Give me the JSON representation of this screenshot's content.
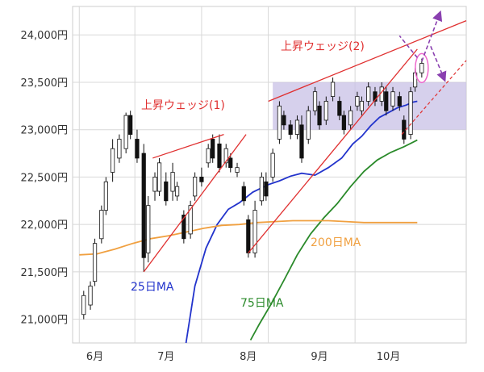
{
  "chart_data": {
    "type": "candlestick",
    "y_ticks": [
      "21,000円",
      "21,500円",
      "22,000円",
      "22,500円",
      "23,000円",
      "23,500円",
      "24,000円"
    ],
    "y_tick_values": [
      21000,
      21500,
      22000,
      22500,
      23000,
      23500,
      24000
    ],
    "x_ticks": [
      "6月",
      "7月",
      "8月",
      "9月",
      "10月"
    ],
    "ylim": [
      20750,
      24300
    ],
    "grid": "vertical-and-horizontal",
    "colors": {
      "candle": "#111111",
      "ma25": "#2233cc",
      "ma75": "#2a8a2a",
      "ma200": "#f0a040",
      "wedge": "#e03030",
      "box_fill": "#c8c0e6",
      "projection": "#8a40b0",
      "highlight": "#ee66cc"
    },
    "series": [
      {
        "name": "25日MA",
        "points": [
          [
            48,
            20750
          ],
          [
            52,
            21350
          ],
          [
            57,
            21750
          ],
          [
            62,
            22000
          ],
          [
            67,
            22160
          ],
          [
            72,
            22230
          ],
          [
            78,
            22340
          ],
          [
            85,
            22420
          ],
          [
            90,
            22460
          ],
          [
            95,
            22510
          ],
          [
            100,
            22540
          ],
          [
            106,
            22520
          ],
          [
            112,
            22600
          ],
          [
            118,
            22700
          ],
          [
            123,
            22850
          ],
          [
            127,
            22930
          ],
          [
            131,
            23040
          ],
          [
            135,
            23130
          ],
          [
            139,
            23180
          ],
          [
            143,
            23230
          ],
          [
            147,
            23260
          ],
          [
            150,
            23290
          ],
          [
            152,
            23300
          ]
        ]
      },
      {
        "name": "75日MA",
        "points": [
          [
            77,
            20780
          ],
          [
            81,
            20950
          ],
          [
            86,
            21150
          ],
          [
            92,
            21410
          ],
          [
            98,
            21680
          ],
          [
            104,
            21900
          ],
          [
            110,
            22070
          ],
          [
            116,
            22220
          ],
          [
            122,
            22400
          ],
          [
            128,
            22560
          ],
          [
            134,
            22680
          ],
          [
            140,
            22760
          ],
          [
            146,
            22820
          ],
          [
            152,
            22890
          ]
        ]
      },
      {
        "name": "200日MA",
        "points": [
          [
            0,
            21680
          ],
          [
            8,
            21690
          ],
          [
            16,
            21740
          ],
          [
            24,
            21800
          ],
          [
            32,
            21850
          ],
          [
            40,
            21880
          ],
          [
            48,
            21920
          ],
          [
            56,
            21960
          ],
          [
            64,
            21990
          ],
          [
            72,
            22000
          ],
          [
            80,
            22020
          ],
          [
            88,
            22030
          ],
          [
            96,
            22040
          ],
          [
            104,
            22040
          ],
          [
            112,
            22040
          ],
          [
            120,
            22030
          ],
          [
            128,
            22020
          ],
          [
            136,
            22020
          ],
          [
            144,
            22020
          ],
          [
            152,
            22020
          ]
        ]
      }
    ],
    "candles": [
      [
        2,
        21050,
        21250,
        21000,
        21300
      ],
      [
        5,
        21150,
        21350,
        21100,
        21400
      ],
      [
        7,
        21400,
        21800,
        21350,
        21850
      ],
      [
        10,
        21850,
        22150,
        21800,
        22200
      ],
      [
        12,
        22150,
        22450,
        22100,
        22500
      ],
      [
        15,
        22550,
        22800,
        22450,
        22900
      ],
      [
        18,
        22700,
        22900,
        22650,
        22950
      ],
      [
        21,
        22800,
        23150,
        22750,
        23180
      ],
      [
        23,
        23150,
        22950,
        22900,
        23200
      ],
      [
        26,
        22900,
        22700,
        22650,
        23000
      ],
      [
        29,
        22750,
        21650,
        21500,
        22850
      ],
      [
        31,
        21700,
        22200,
        21600,
        22300
      ],
      [
        34,
        22350,
        22500,
        22250,
        22550
      ],
      [
        36,
        22350,
        22650,
        22300,
        22700
      ],
      [
        39,
        22450,
        22250,
        22200,
        22550
      ],
      [
        42,
        22350,
        22550,
        22250,
        22650
      ],
      [
        44,
        22300,
        22400,
        22250,
        22450
      ],
      [
        47,
        22100,
        21850,
        21800,
        22150
      ],
      [
        50,
        21900,
        22200,
        21850,
        22250
      ],
      [
        52,
        22300,
        22500,
        22250,
        22550
      ],
      [
        55,
        22500,
        22450,
        22400,
        22600
      ],
      [
        58,
        22650,
        22800,
        22600,
        22850
      ],
      [
        60,
        22900,
        22700,
        22650,
        22950
      ],
      [
        63,
        22850,
        22600,
        22550,
        22950
      ],
      [
        66,
        22650,
        22800,
        22600,
        22850
      ],
      [
        68,
        22700,
        22600,
        22550,
        22750
      ],
      [
        71,
        22550,
        22600,
        22500,
        22650
      ],
      [
        74,
        22400,
        22250,
        22200,
        22450
      ],
      [
        76,
        22050,
        21700,
        21650,
        22100
      ],
      [
        79,
        21700,
        22150,
        21650,
        22250
      ],
      [
        82,
        22250,
        22500,
        22200,
        22550
      ],
      [
        84,
        22450,
        22300,
        22250,
        22550
      ],
      [
        87,
        22500,
        22750,
        22450,
        22800
      ],
      [
        90,
        22900,
        23250,
        22850,
        23300
      ],
      [
        92,
        23150,
        23050,
        23000,
        23200
      ],
      [
        95,
        23050,
        22950,
        22900,
        23100
      ],
      [
        98,
        22950,
        23100,
        22900,
        23150
      ],
      [
        100,
        23050,
        22700,
        22650,
        23150
      ],
      [
        103,
        22900,
        23200,
        22850,
        23250
      ],
      [
        106,
        23200,
        23400,
        23150,
        23450
      ],
      [
        108,
        23250,
        23050,
        23000,
        23300
      ],
      [
        111,
        23100,
        23300,
        23050,
        23350
      ],
      [
        114,
        23350,
        23500,
        23300,
        23550
      ],
      [
        117,
        23300,
        23150,
        23100,
        23350
      ],
      [
        119,
        23150,
        23000,
        22950,
        23200
      ],
      [
        122,
        23050,
        23200,
        23000,
        23250
      ],
      [
        125,
        23250,
        23350,
        23200,
        23400
      ],
      [
        127,
        23200,
        23300,
        23150,
        23350
      ],
      [
        130,
        23300,
        23450,
        23250,
        23500
      ],
      [
        133,
        23400,
        23300,
        23250,
        23450
      ],
      [
        136,
        23300,
        23450,
        23250,
        23500
      ],
      [
        138,
        23400,
        23200,
        23150,
        23450
      ],
      [
        141,
        23250,
        23400,
        23200,
        23450
      ],
      [
        144,
        23350,
        23250,
        23200,
        23400
      ],
      [
        146,
        23100,
        22900,
        22850,
        23150
      ],
      [
        149,
        22950,
        23400,
        22900,
        23450
      ],
      [
        151,
        23450,
        23600,
        23400,
        23650
      ],
      [
        154,
        23600,
        23700,
        23550,
        23750
      ]
    ],
    "annotations": [
      {
        "text": "上昇ウェッジ(1)",
        "color": "#e03030"
      },
      {
        "text": "上昇ウェッジ(2)",
        "color": "#e03030"
      },
      {
        "text": "25日MA",
        "color": "#2233cc"
      },
      {
        "text": "75日MA",
        "color": "#2a8a2a"
      },
      {
        "text": "200日MA",
        "color": "#f0a040"
      }
    ]
  }
}
